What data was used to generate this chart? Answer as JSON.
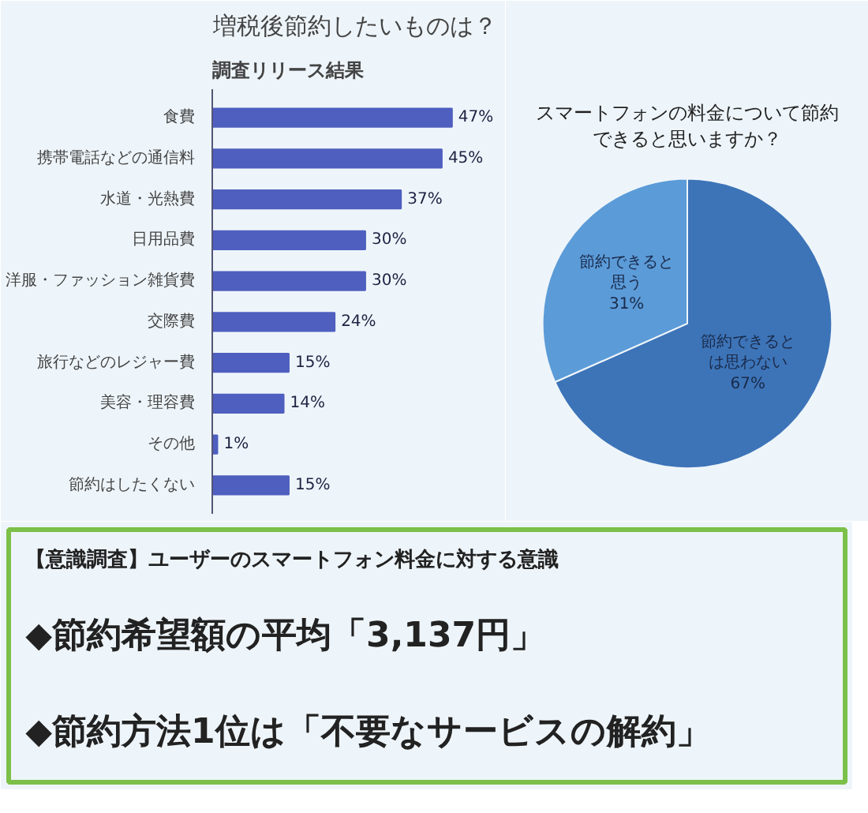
{
  "chart_data": [
    {
      "type": "bar",
      "orientation": "horizontal",
      "title": "増税後節約したいものは？",
      "annotations": [
        "調査リリース結果"
      ],
      "categories": [
        "食費",
        "携帯電話などの通信料",
        "水道・光熱費",
        "日用品費",
        "洋服・ファッション雑貨費",
        "交際費",
        "旅行などのレジャー費",
        "美容・理容費",
        "その他",
        "節約はしたくない"
      ],
      "values": [
        47,
        45,
        37,
        30,
        30,
        24,
        15,
        14,
        1,
        15
      ],
      "value_labels": [
        "47%",
        "45%",
        "37%",
        "30%",
        "30%",
        "24%",
        "15%",
        "14%",
        "1%",
        "15%"
      ],
      "color": "#4f5fbf",
      "xlim": [
        0,
        56
      ],
      "tick_labels": "y"
    },
    {
      "type": "pie",
      "title": "スマートフォンの料金について節約できると思いますか？",
      "categories": [
        "節約できるとは思わない",
        "節約できると思う"
      ],
      "values": [
        67,
        31
      ],
      "value_labels": [
        "67%",
        "31%"
      ],
      "colors": [
        "#3d74b8",
        "#5b9bd8"
      ]
    },
    {
      "type": "other",
      "title": "【意識調査】ユーザーのスマートフォン料金に対する意識",
      "annotations": [
        "◆節約希望額の平均「3,137円」",
        "◆節約方法1位は「不要なサービスの解約」"
      ]
    }
  ]
}
